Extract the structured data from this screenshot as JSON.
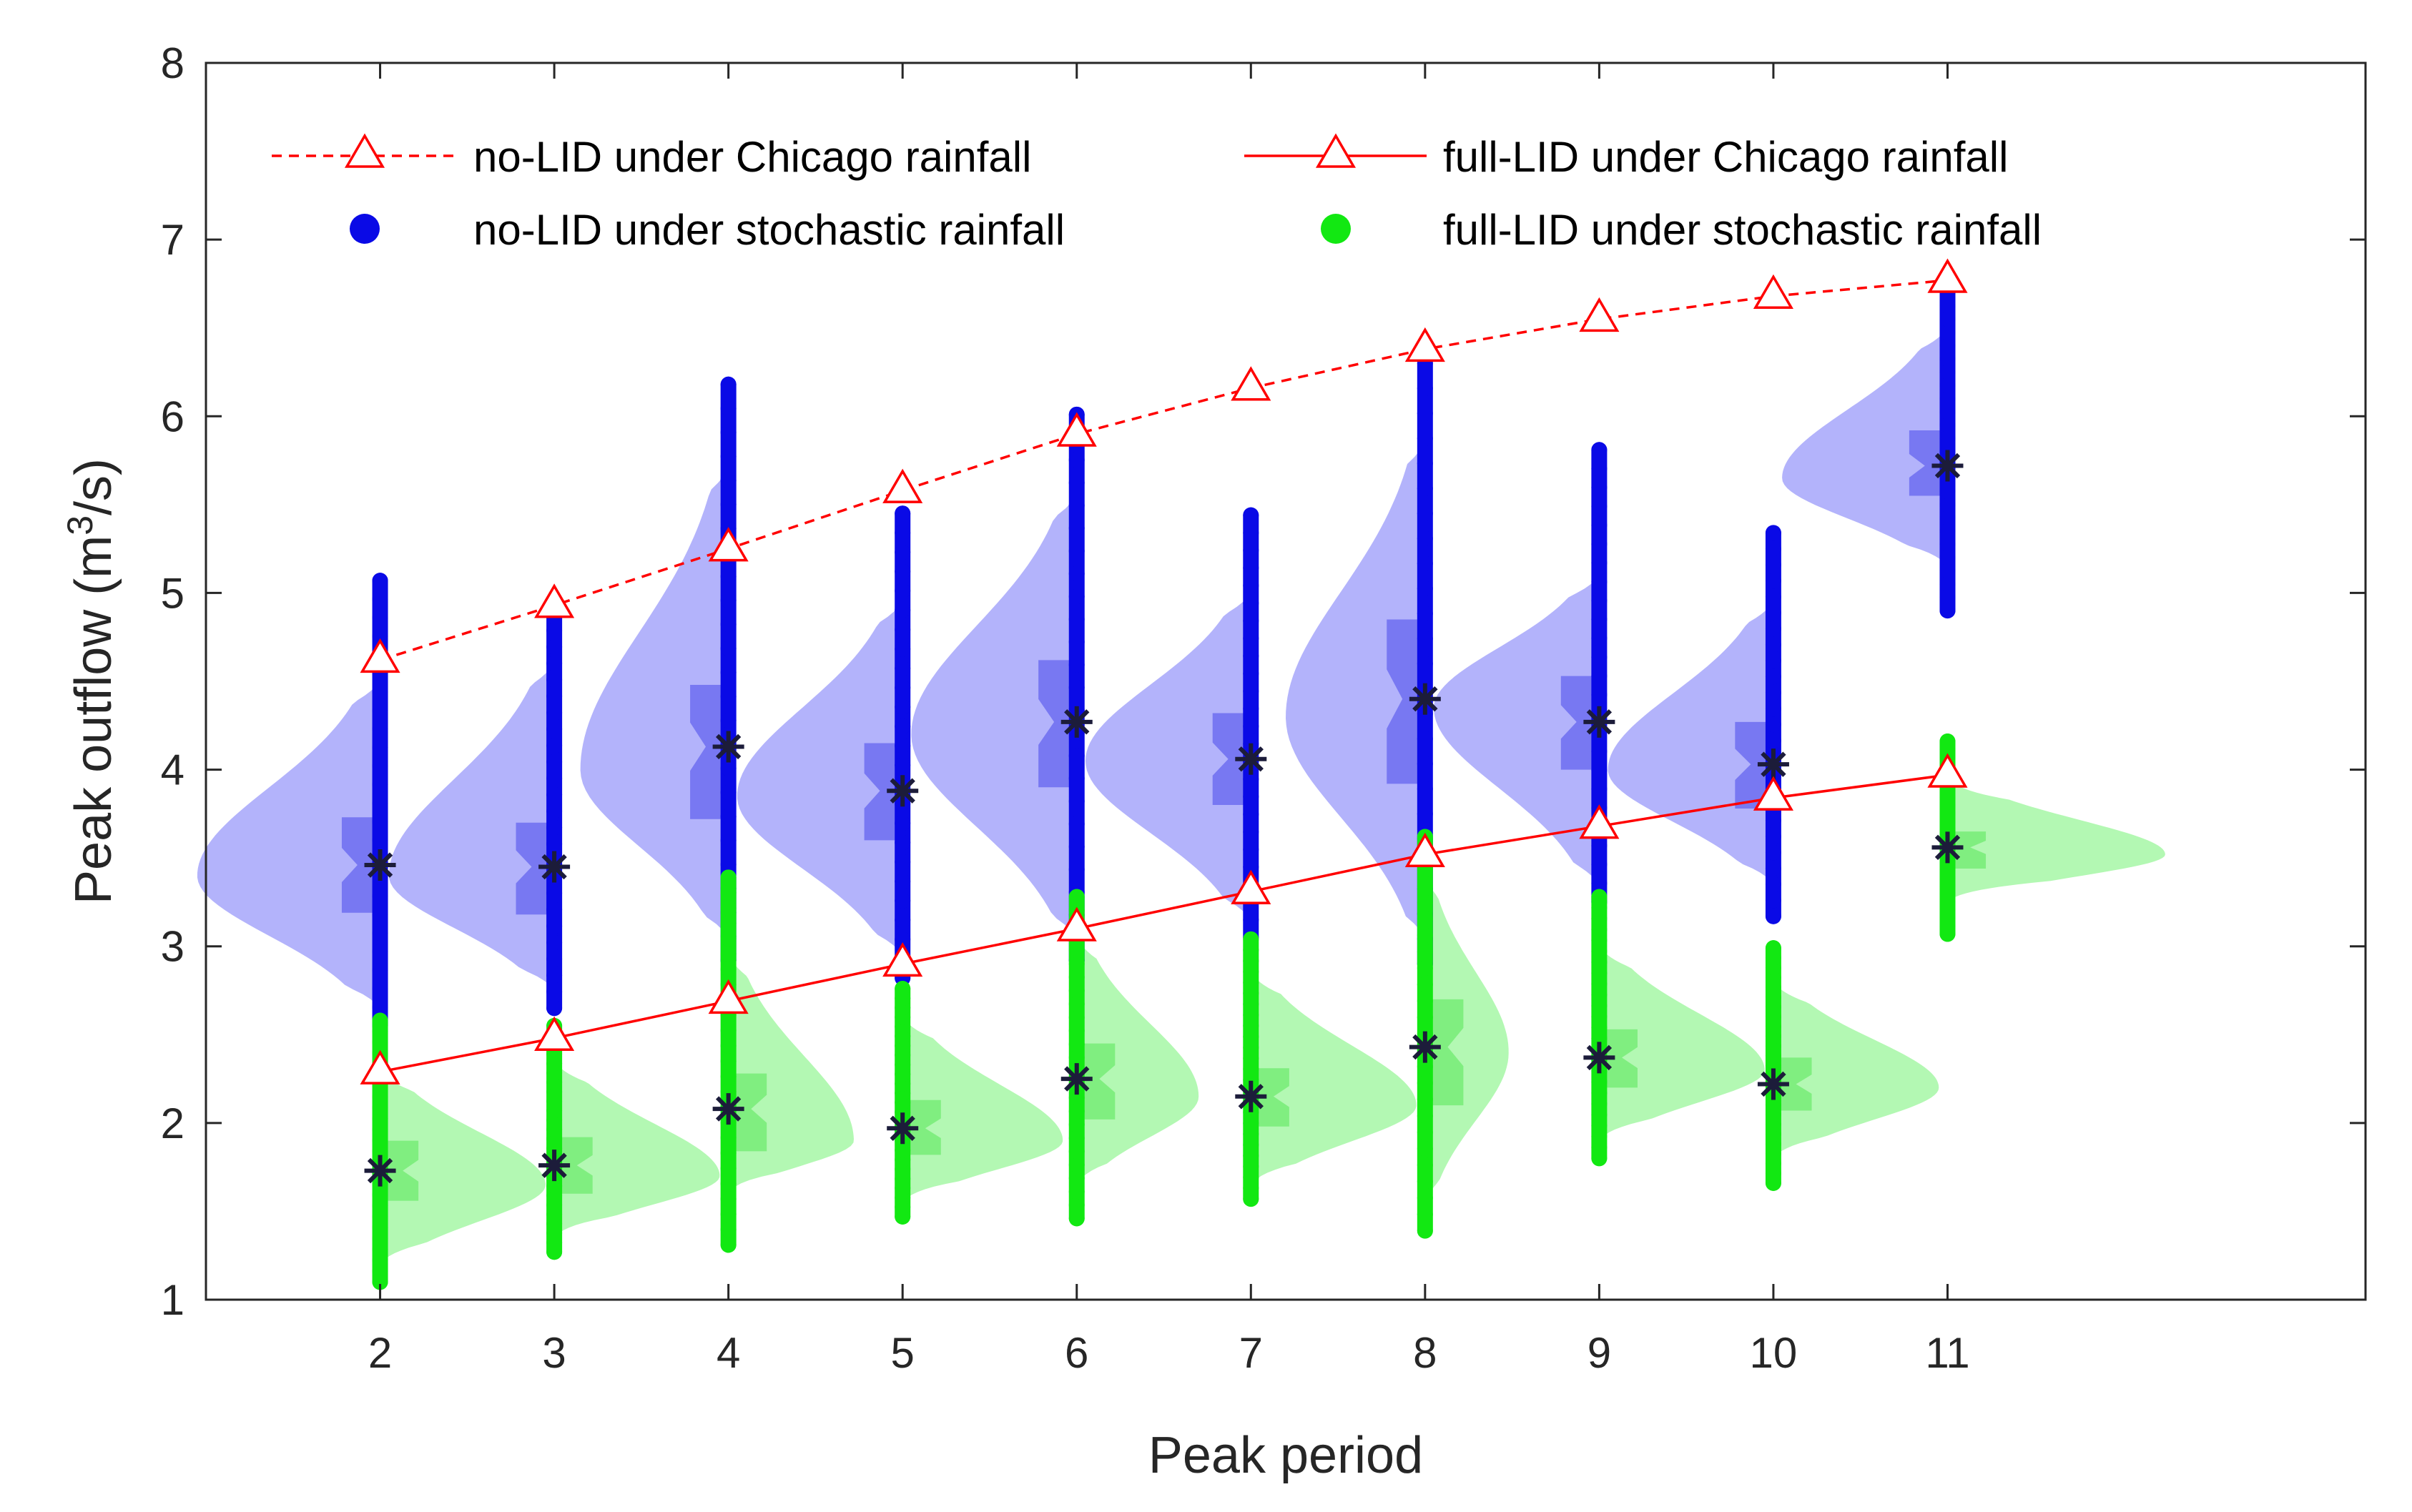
{
  "chart_data": {
    "type": "scatter",
    "subtype": "violin-scatter",
    "title": "",
    "xlabel": "Peak period",
    "ylabel": "Peak outflow (m",
    "ylabel_sup": "3",
    "ylabel_end": "/s)",
    "xlim": [
      1,
      13.4
    ],
    "ylim": [
      1,
      8
    ],
    "xticks": [
      2,
      3,
      4,
      5,
      6,
      7,
      8,
      9,
      10,
      11
    ],
    "yticks": [
      1,
      2,
      3,
      4,
      5,
      6,
      7,
      8
    ],
    "legend": [
      {
        "label": "no-LID under Chicago rainfall",
        "marker": "triangle",
        "line": "dashed",
        "color": "#ff0000"
      },
      {
        "label": "full-LID under Chicago rainfall",
        "marker": "triangle",
        "line": "solid",
        "color": "#ff0000"
      },
      {
        "label": "no-LID under stochastic rainfall",
        "marker": "circle",
        "color": "#0000ee"
      },
      {
        "label": "full-LID under stochastic rainfall",
        "marker": "circle",
        "color": "#00ee00"
      }
    ],
    "colors": {
      "noLID_points": "#0a0ae6",
      "noLID_violin": "#b3b3fb",
      "noLID_box": "#6d6df0",
      "fullLID_points": "#12e812",
      "fullLID_violin": "#b3f8b3",
      "fullLID_box": "#77ec77",
      "median": "#1c1c3a",
      "chicago": "#ff0000"
    },
    "series": [
      {
        "name": "no-LID under Chicago rainfall",
        "x": [
          2,
          3,
          4,
          5,
          6,
          7,
          8,
          9,
          10,
          11
        ],
        "values": [
          4.62,
          4.93,
          5.25,
          5.58,
          5.9,
          6.16,
          6.38,
          6.55,
          6.68,
          6.77
        ]
      },
      {
        "name": "full-LID under Chicago rainfall",
        "x": [
          2,
          3,
          4,
          5,
          6,
          7,
          8,
          9,
          10,
          11
        ],
        "values": [
          2.29,
          2.48,
          2.69,
          2.9,
          3.1,
          3.31,
          3.52,
          3.68,
          3.84,
          3.97
        ]
      }
    ],
    "distributions": [
      {
        "name": "no-LID under stochastic rainfall",
        "side": "left",
        "groups": [
          {
            "x": 2,
            "min": 2.55,
            "max": 5.07,
            "median": 3.46,
            "q1": 3.19,
            "q3": 3.73,
            "mode": 3.4,
            "lo": 2.65,
            "hi": 4.5,
            "width": 1.05
          },
          {
            "x": 3,
            "min": 2.65,
            "max": 4.88,
            "median": 3.45,
            "q1": 3.18,
            "q3": 3.7,
            "mode": 3.4,
            "lo": 2.75,
            "hi": 4.6,
            "width": 0.95
          },
          {
            "x": 4,
            "min": 2.92,
            "max": 6.18,
            "median": 4.13,
            "q1": 3.72,
            "q3": 4.48,
            "mode": 4.0,
            "lo": 3.05,
            "hi": 5.7,
            "width": 0.85
          },
          {
            "x": 5,
            "min": 2.82,
            "max": 5.45,
            "median": 3.88,
            "q1": 3.6,
            "q3": 4.15,
            "mode": 3.85,
            "lo": 2.95,
            "hi": 4.95,
            "width": 0.95
          },
          {
            "x": 6,
            "min": 2.92,
            "max": 6.01,
            "median": 4.27,
            "q1": 3.9,
            "q3": 4.62,
            "mode": 4.2,
            "lo": 3.05,
            "hi": 5.55,
            "width": 0.95
          },
          {
            "x": 7,
            "min": 3.05,
            "max": 5.44,
            "median": 4.06,
            "q1": 3.8,
            "q3": 4.32,
            "mode": 4.05,
            "lo": 3.15,
            "hi": 5.0,
            "width": 0.95
          },
          {
            "x": 8,
            "min": 2.9,
            "max": 6.3,
            "median": 4.4,
            "q1": 3.92,
            "q3": 4.85,
            "mode": 4.3,
            "lo": 3.05,
            "hi": 5.85,
            "width": 0.8
          },
          {
            "x": 9,
            "min": 3.25,
            "max": 5.81,
            "median": 4.27,
            "q1": 4.0,
            "q3": 4.53,
            "mode": 4.35,
            "lo": 3.35,
            "hi": 5.1,
            "width": 0.95
          },
          {
            "x": 10,
            "min": 3.17,
            "max": 5.34,
            "median": 4.03,
            "q1": 3.78,
            "q3": 4.27,
            "mode": 4.0,
            "lo": 3.35,
            "hi": 4.95,
            "width": 0.95
          },
          {
            "x": 11,
            "min": 4.9,
            "max": 6.7,
            "median": 5.72,
            "q1": 5.55,
            "q3": 5.92,
            "mode": 5.65,
            "lo": 5.15,
            "hi": 6.5,
            "width": 0.95
          }
        ]
      },
      {
        "name": "full-LID under stochastic rainfall",
        "side": "right",
        "groups": [
          {
            "x": 2,
            "min": 1.1,
            "max": 2.58,
            "median": 1.73,
            "q1": 1.56,
            "q3": 1.9,
            "mode": 1.65,
            "lo": 1.2,
            "hi": 2.3,
            "width": 0.95
          },
          {
            "x": 3,
            "min": 1.27,
            "max": 2.55,
            "median": 1.76,
            "q1": 1.6,
            "q3": 1.92,
            "mode": 1.7,
            "lo": 1.35,
            "hi": 2.35,
            "width": 0.95
          },
          {
            "x": 4,
            "min": 1.31,
            "max": 3.39,
            "median": 2.08,
            "q1": 1.84,
            "q3": 2.28,
            "mode": 1.9,
            "lo": 1.6,
            "hi": 2.95,
            "width": 0.72
          },
          {
            "x": 5,
            "min": 1.47,
            "max": 2.76,
            "median": 1.97,
            "q1": 1.82,
            "q3": 2.13,
            "mode": 1.9,
            "lo": 1.55,
            "hi": 2.6,
            "width": 0.92
          },
          {
            "x": 6,
            "min": 1.46,
            "max": 3.28,
            "median": 2.25,
            "q1": 2.02,
            "q3": 2.45,
            "mode": 2.15,
            "lo": 1.65,
            "hi": 3.05,
            "width": 0.7
          },
          {
            "x": 7,
            "min": 1.57,
            "max": 3.04,
            "median": 2.15,
            "q1": 1.98,
            "q3": 2.31,
            "mode": 2.1,
            "lo": 1.65,
            "hi": 2.85,
            "width": 0.95
          },
          {
            "x": 8,
            "min": 1.39,
            "max": 3.62,
            "median": 2.43,
            "q1": 2.1,
            "q3": 2.7,
            "mode": 2.4,
            "lo": 1.55,
            "hi": 3.4,
            "width": 0.48
          },
          {
            "x": 9,
            "min": 1.8,
            "max": 3.28,
            "median": 2.37,
            "q1": 2.2,
            "q3": 2.53,
            "mode": 2.3,
            "lo": 1.9,
            "hi": 3.0,
            "width": 0.95
          },
          {
            "x": 10,
            "min": 1.66,
            "max": 2.99,
            "median": 2.22,
            "q1": 2.07,
            "q3": 2.37,
            "mode": 2.2,
            "lo": 1.8,
            "hi": 2.8,
            "width": 0.95
          },
          {
            "x": 11,
            "min": 3.07,
            "max": 4.16,
            "median": 3.56,
            "q1": 3.44,
            "q3": 3.65,
            "mode": 3.52,
            "lo": 3.25,
            "hi": 3.95,
            "width": 1.25
          }
        ]
      }
    ]
  }
}
